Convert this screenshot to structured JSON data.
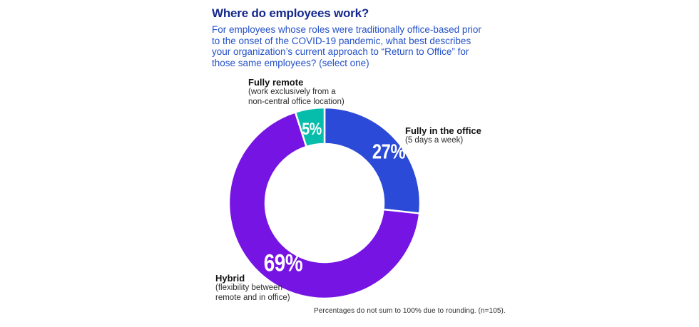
{
  "header": {
    "title": "Where do employees work?",
    "subtitle": "For employees whose roles were traditionally office-based prior to the onset of the COVID-19 pandemic, what best describes your organization’s current approach to “Return to Office” for those same employees? (select one)"
  },
  "chart_data": {
    "type": "pie",
    "donut": true,
    "title": "Where do employees work?",
    "start_angle_deg": 0,
    "direction": "clockwise",
    "segments": [
      {
        "name": "Fully in the office",
        "desc_lines": [
          "(5 days a week)"
        ],
        "value": 27,
        "label": "27%",
        "color": "#2B4AD7"
      },
      {
        "name": "Hybrid",
        "desc_lines": [
          "(flexibility between",
          "remote and in office)"
        ],
        "value": 69,
        "label": "69%",
        "color": "#7614E3"
      },
      {
        "name": "Fully remote",
        "desc_lines": [
          "(work exclusively from a",
          "non-central office location)"
        ],
        "value": 5,
        "label": "5%",
        "color": "#06BCAB"
      }
    ],
    "note": "Percentages do not sum to 100% due to rounding. (n=105)."
  },
  "style": {
    "title_color": "#16298C",
    "subtitle_color": "#2450C8",
    "separator_color": "#FFFFFF",
    "background": "#FFFFFF"
  }
}
